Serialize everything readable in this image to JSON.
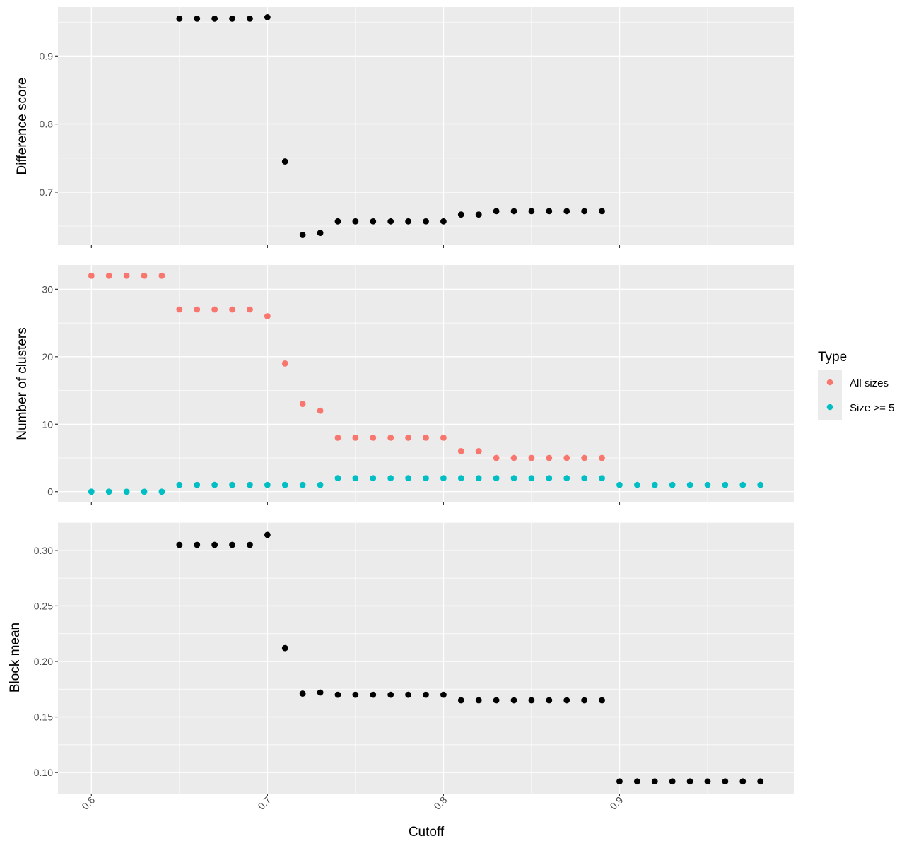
{
  "chart_data": {
    "type": "scatter",
    "xlabel": "Cutoff",
    "x_ticks": [
      "0.6",
      "0.7",
      "0.8",
      "0.9"
    ],
    "x_tick_values": [
      0.6,
      0.7,
      0.8,
      0.9
    ],
    "xlim": [
      0.581,
      0.999
    ],
    "legend": {
      "title": "Type",
      "position": "right",
      "entries": [
        {
          "label": "All sizes",
          "color": "#F8766D"
        },
        {
          "label": "Size >= 5",
          "color": "#00BFC4"
        }
      ]
    },
    "panels": [
      {
        "ylabel": "Difference score",
        "ylim": [
          0.622,
          0.972
        ],
        "y_ticks": [
          "0.7",
          "0.8",
          "0.9"
        ],
        "y_tick_values": [
          0.7,
          0.8,
          0.9
        ],
        "series": [
          {
            "color": "#000000",
            "x": [
              0.65,
              0.66,
              0.67,
              0.68,
              0.69,
              0.7,
              0.71,
              0.72,
              0.73,
              0.74,
              0.75,
              0.76,
              0.77,
              0.78,
              0.79,
              0.8,
              0.81,
              0.82,
              0.83,
              0.84,
              0.85,
              0.86,
              0.87,
              0.88,
              0.89
            ],
            "y": [
              0.955,
              0.955,
              0.955,
              0.955,
              0.955,
              0.957,
              0.745,
              0.637,
              0.64,
              0.657,
              0.657,
              0.657,
              0.657,
              0.657,
              0.657,
              0.657,
              0.667,
              0.667,
              0.672,
              0.672,
              0.672,
              0.672,
              0.672,
              0.672,
              0.672
            ]
          }
        ]
      },
      {
        "ylabel": "Number of clusters",
        "ylim": [
          -1.6,
          33.6
        ],
        "y_ticks": [
          "0",
          "10",
          "20",
          "30"
        ],
        "y_tick_values": [
          0,
          10,
          20,
          30
        ],
        "series": [
          {
            "name": "All sizes",
            "color": "#F8766D",
            "x": [
              0.6,
              0.61,
              0.62,
              0.63,
              0.64,
              0.65,
              0.66,
              0.67,
              0.68,
              0.69,
              0.7,
              0.71,
              0.72,
              0.73,
              0.74,
              0.75,
              0.76,
              0.77,
              0.78,
              0.79,
              0.8,
              0.81,
              0.82,
              0.83,
              0.84,
              0.85,
              0.86,
              0.87,
              0.88,
              0.89
            ],
            "y": [
              32,
              32,
              32,
              32,
              32,
              27,
              27,
              27,
              27,
              27,
              26,
              19,
              13,
              12,
              8,
              8,
              8,
              8,
              8,
              8,
              8,
              6,
              6,
              5,
              5,
              5,
              5,
              5,
              5,
              5
            ]
          },
          {
            "name": "Size >= 5",
            "color": "#00BFC4",
            "x": [
              0.6,
              0.61,
              0.62,
              0.63,
              0.64,
              0.65,
              0.66,
              0.67,
              0.68,
              0.69,
              0.7,
              0.71,
              0.72,
              0.73,
              0.74,
              0.75,
              0.76,
              0.77,
              0.78,
              0.79,
              0.8,
              0.81,
              0.82,
              0.83,
              0.84,
              0.85,
              0.86,
              0.87,
              0.88,
              0.89,
              0.9,
              0.91,
              0.92,
              0.93,
              0.94,
              0.95,
              0.96,
              0.97,
              0.98
            ],
            "y": [
              0,
              0,
              0,
              0,
              0,
              1,
              1,
              1,
              1,
              1,
              1,
              1,
              1,
              1,
              2,
              2,
              2,
              2,
              2,
              2,
              2,
              2,
              2,
              2,
              2,
              2,
              2,
              2,
              2,
              2,
              1,
              1,
              1,
              1,
              1,
              1,
              1,
              1,
              1
            ]
          }
        ]
      },
      {
        "ylabel": "Block mean",
        "ylim": [
          0.081,
          0.326
        ],
        "y_ticks": [
          "0.10",
          "0.15",
          "0.20",
          "0.25",
          "0.30"
        ],
        "y_tick_values": [
          0.1,
          0.15,
          0.2,
          0.25,
          0.3
        ],
        "series": [
          {
            "color": "#000000",
            "x": [
              0.65,
              0.66,
              0.67,
              0.68,
              0.69,
              0.7,
              0.71,
              0.72,
              0.73,
              0.74,
              0.75,
              0.76,
              0.77,
              0.78,
              0.79,
              0.8,
              0.81,
              0.82,
              0.83,
              0.84,
              0.85,
              0.86,
              0.87,
              0.88,
              0.89,
              0.9,
              0.91,
              0.92,
              0.93,
              0.94,
              0.95,
              0.96,
              0.97,
              0.98
            ],
            "y": [
              0.305,
              0.305,
              0.305,
              0.305,
              0.305,
              0.314,
              0.212,
              0.171,
              0.172,
              0.17,
              0.17,
              0.17,
              0.17,
              0.17,
              0.17,
              0.17,
              0.165,
              0.165,
              0.165,
              0.165,
              0.165,
              0.165,
              0.165,
              0.165,
              0.165,
              0.092,
              0.092,
              0.092,
              0.092,
              0.092,
              0.092,
              0.092,
              0.092,
              0.092
            ]
          }
        ]
      }
    ]
  }
}
